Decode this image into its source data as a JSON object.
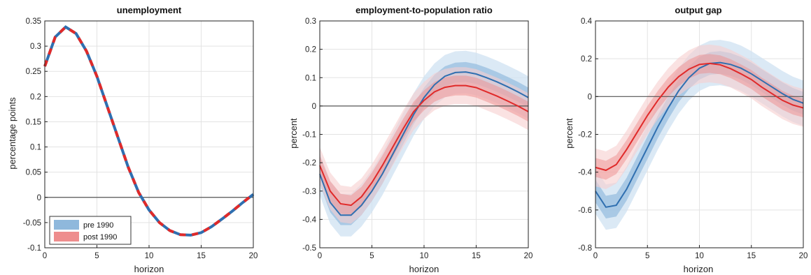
{
  "colors": {
    "pre": "#2f6fb0",
    "pre_band_inner": "#8fb8dc",
    "pre_band_outer": "#cfe1f1",
    "post": "#e02a2a",
    "post_band_inner": "#ee8d8d",
    "post_band_outer": "#f7cfcf",
    "zero_line": "#555555",
    "grid": "#e3e3e3"
  },
  "legend": {
    "pre": "pre 1990",
    "post": "post 1990",
    "placement": "bottom-left of first panel"
  },
  "chart_data": [
    {
      "type": "line",
      "title": "unemployment",
      "xlabel": "horizon",
      "ylabel": "percentage points",
      "xlim": [
        0,
        20
      ],
      "ylim": [
        -0.1,
        0.35
      ],
      "xticks": [
        0,
        5,
        10,
        15,
        20
      ],
      "yticks": [
        -0.1,
        -0.05,
        0,
        0.05,
        0.1,
        0.15,
        0.2,
        0.25,
        0.3,
        0.35
      ],
      "ytick_labels": [
        "-0.1",
        "-0.05",
        "0",
        "0.05",
        "0.1",
        "0.15",
        "0.2",
        "0.25",
        "0.3",
        "0.35"
      ],
      "grid": true,
      "x": [
        0,
        1,
        2,
        3,
        4,
        5,
        6,
        7,
        8,
        9,
        10,
        11,
        12,
        13,
        14,
        15,
        16,
        17,
        18,
        19,
        20
      ],
      "series": [
        {
          "name": "pre 1990",
          "values": [
            0.26,
            0.318,
            0.338,
            0.325,
            0.29,
            0.24,
            0.18,
            0.12,
            0.06,
            0.01,
            -0.025,
            -0.05,
            -0.066,
            -0.074,
            -0.075,
            -0.07,
            -0.058,
            -0.043,
            -0.027,
            -0.01,
            0.006
          ]
        },
        {
          "name": "post 1990",
          "values": [
            0.26,
            0.318,
            0.338,
            0.325,
            0.29,
            0.24,
            0.18,
            0.12,
            0.06,
            0.01,
            -0.025,
            -0.05,
            -0.066,
            -0.074,
            -0.075,
            -0.07,
            -0.058,
            -0.043,
            -0.027,
            -0.01,
            0.006
          ]
        }
      ]
    },
    {
      "type": "line",
      "title": "employment-to-population ratio",
      "xlabel": "horizon",
      "ylabel": "percent",
      "xlim": [
        0,
        20
      ],
      "ylim": [
        -0.5,
        0.3
      ],
      "xticks": [
        0,
        5,
        10,
        15,
        20
      ],
      "yticks": [
        -0.5,
        -0.4,
        -0.3,
        -0.2,
        -0.1,
        0,
        0.1,
        0.2,
        0.3
      ],
      "ytick_labels": [
        "-0.5",
        "-0.4",
        "-0.3",
        "-0.2",
        "-0.1",
        "0",
        "0.1",
        "0.2",
        "0.3"
      ],
      "grid": true,
      "x": [
        0,
        1,
        2,
        3,
        4,
        5,
        6,
        7,
        8,
        9,
        10,
        11,
        12,
        13,
        14,
        15,
        16,
        17,
        18,
        19,
        20
      ],
      "series": [
        {
          "name": "pre 1990",
          "values": [
            -0.24,
            -0.34,
            -0.385,
            -0.385,
            -0.35,
            -0.3,
            -0.24,
            -0.17,
            -0.1,
            -0.03,
            0.03,
            0.075,
            0.105,
            0.118,
            0.12,
            0.113,
            0.1,
            0.085,
            0.068,
            0.05,
            0.03
          ],
          "band_inner": 0.035,
          "band_outer": 0.075
        },
        {
          "name": "post 1990",
          "values": [
            -0.21,
            -0.3,
            -0.345,
            -0.35,
            -0.32,
            -0.27,
            -0.21,
            -0.145,
            -0.08,
            -0.02,
            0.02,
            0.05,
            0.066,
            0.072,
            0.072,
            0.065,
            0.05,
            0.035,
            0.018,
            0.0,
            -0.02
          ],
          "band_inner": 0.035,
          "band_outer": 0.065
        }
      ]
    },
    {
      "type": "line",
      "title": "output gap",
      "xlabel": "horizon",
      "ylabel": "percent",
      "xlim": [
        0,
        20
      ],
      "ylim": [
        -0.8,
        0.4
      ],
      "xticks": [
        0,
        5,
        10,
        15,
        20
      ],
      "yticks": [
        -0.8,
        -0.6,
        -0.4,
        -0.2,
        0,
        0.2,
        0.4
      ],
      "ytick_labels": [
        "-0.8",
        "-0.6",
        "-0.4",
        "-0.2",
        "0",
        "0.2",
        "0.4"
      ],
      "grid": true,
      "x": [
        0,
        1,
        2,
        3,
        4,
        5,
        6,
        7,
        8,
        9,
        10,
        11,
        12,
        13,
        14,
        15,
        16,
        17,
        18,
        19,
        20
      ],
      "series": [
        {
          "name": "pre 1990",
          "values": [
            -0.5,
            -0.585,
            -0.575,
            -0.49,
            -0.38,
            -0.27,
            -0.16,
            -0.06,
            0.03,
            0.1,
            0.15,
            0.175,
            0.18,
            0.17,
            0.15,
            0.12,
            0.085,
            0.05,
            0.015,
            -0.015,
            -0.035
          ],
          "band_inner": 0.06,
          "band_outer": 0.12
        },
        {
          "name": "post 1990",
          "values": [
            -0.375,
            -0.39,
            -0.36,
            -0.28,
            -0.19,
            -0.1,
            -0.02,
            0.05,
            0.105,
            0.145,
            0.17,
            0.175,
            0.168,
            0.148,
            0.12,
            0.09,
            0.05,
            0.015,
            -0.02,
            -0.045,
            -0.06
          ],
          "band_inner": 0.05,
          "band_outer": 0.1
        }
      ]
    }
  ]
}
